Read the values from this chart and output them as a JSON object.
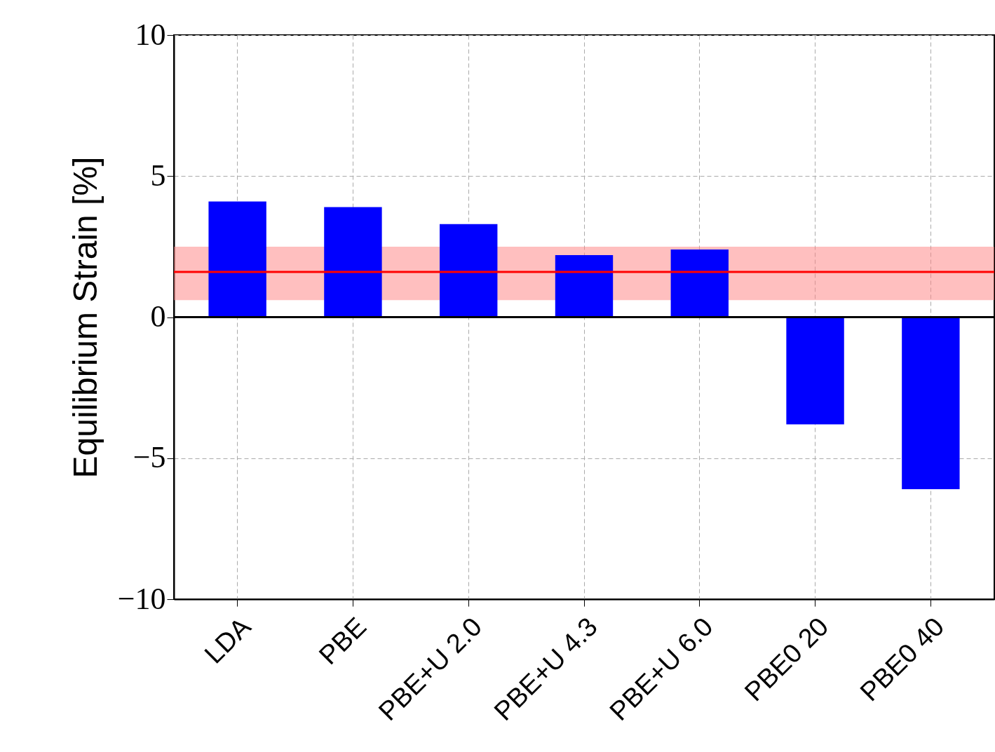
{
  "chart_data": {
    "type": "bar",
    "ylabel": "Equilibrium Strain [%]",
    "categories": [
      "LDA",
      "PBE",
      "PBE+U 2.0",
      "PBE+U 4.3",
      "PBE+U 6.0",
      "PBE0 20",
      "PBE0 40"
    ],
    "values": [
      4.1,
      3.9,
      3.3,
      2.2,
      2.4,
      -3.8,
      -6.1
    ],
    "color": "#0000ff",
    "ylim": [
      -10,
      10
    ],
    "yticks": [
      {
        "value": -10,
        "label": "−10"
      },
      {
        "value": -5,
        "label": "−5"
      },
      0,
      5,
      10
    ],
    "grid": true,
    "bands": [
      {
        "axis": "y",
        "from": 0.6,
        "to": 2.5,
        "color": "#ff8080"
      }
    ],
    "ref_lines": [
      {
        "axis": "y",
        "value": 1.6,
        "color": "#ff0000"
      },
      {
        "axis": "y",
        "value": 0,
        "color": "#000000"
      }
    ]
  }
}
